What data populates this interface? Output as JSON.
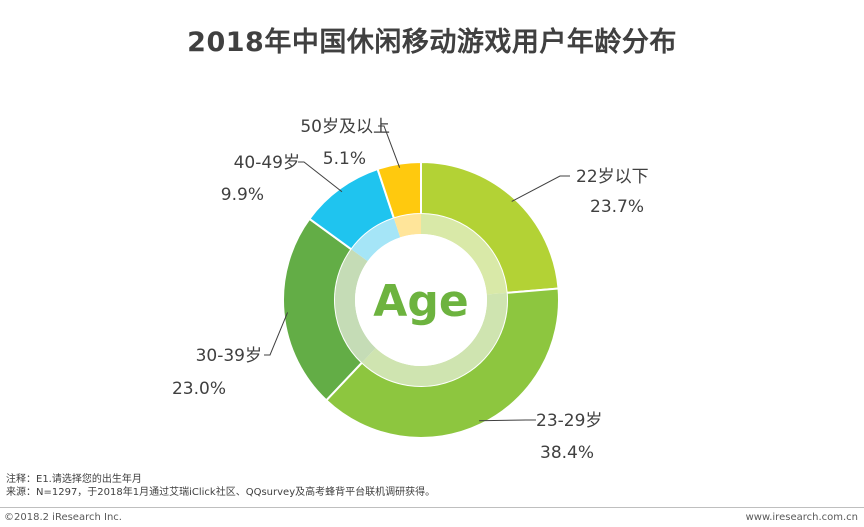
{
  "chart_data": {
    "type": "pie",
    "title": "2018年中国休闲移动游戏用户年龄分布",
    "center_label": "Age",
    "slices": [
      {
        "label": "22岁以下",
        "value": 23.7,
        "value_label": "23.7%",
        "color": "#b3d235",
        "inner_color": "#d9e9a8"
      },
      {
        "label": "23-29岁",
        "value": 38.4,
        "value_label": "38.4%",
        "color": "#8dc63f",
        "inner_color": "#cfe4b0"
      },
      {
        "label": "30-39岁",
        "value": 23.0,
        "value_label": "23.0%",
        "color": "#63ad46",
        "inner_color": "#c5dcb6"
      },
      {
        "label": "40-49岁",
        "value": 9.9,
        "value_label": "9.9%",
        "color": "#1fc4ef",
        "inner_color": "#a5e5f7"
      },
      {
        "label": "50岁及以上",
        "value": 5.1,
        "value_label": "5.1%",
        "color": "#ffc90e",
        "inner_color": "#ffe59a"
      }
    ]
  },
  "notes": {
    "note1": "注释：E1.请选择您的出生年月",
    "note2": "来源：N=1297，于2018年1月通过艾瑞iClick社区、QQsurvey及高考蜂背平台联机调研获得。"
  },
  "footer": {
    "copyright": "©2018.2 iResearch Inc.",
    "website": "www.iresearch.com.cn"
  }
}
